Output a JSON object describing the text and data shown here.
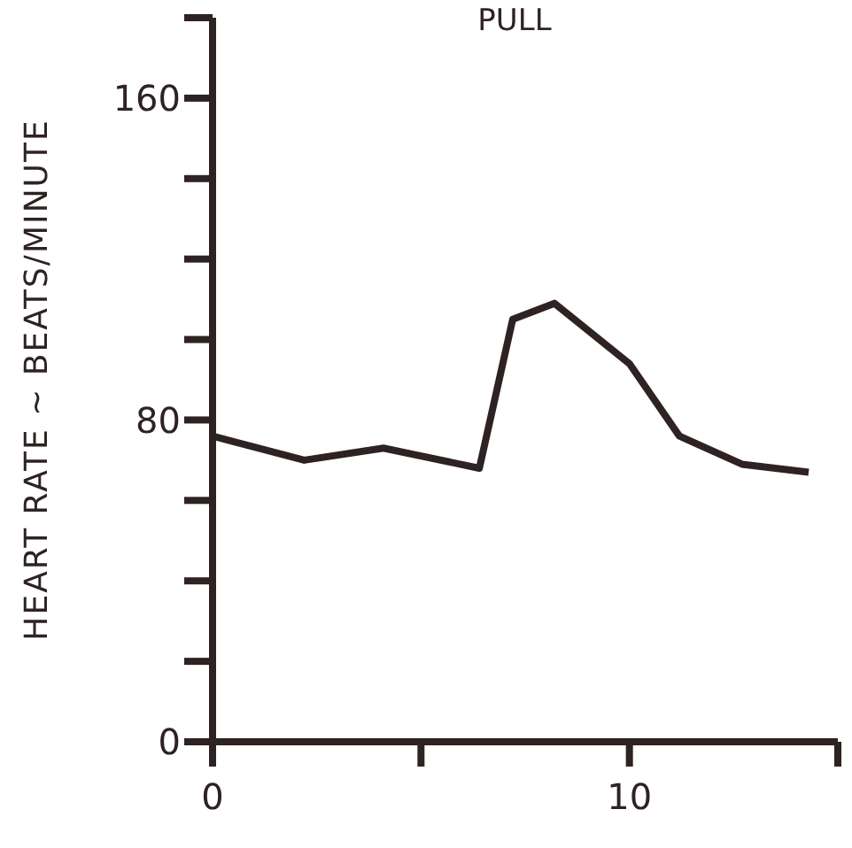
{
  "chart_data": {
    "type": "line",
    "title": "PULL",
    "ylabel": "HEART RATE ~ BEATS/MINUTE",
    "x": [
      0,
      2.2,
      4.1,
      6.4,
      7.2,
      8.2,
      10,
      11.2,
      12.7,
      14.3
    ],
    "series": [
      {
        "color": "#2e2222",
        "values": [
          76,
          70,
          73,
          68,
          105,
          109,
          94,
          76,
          69,
          67
        ]
      }
    ],
    "xlim": [
      0,
      15
    ],
    "xticks": [
      0,
      {
        "value": 5,
        "label": null
      },
      10,
      {
        "value": 15,
        "label": null
      }
    ],
    "ylim": [
      0,
      180
    ],
    "yticks": [
      0,
      {
        "value": 20,
        "label": null
      },
      {
        "value": 40,
        "label": null
      },
      {
        "value": 60,
        "label": null
      },
      80,
      {
        "value": 100,
        "label": null
      },
      {
        "value": 120,
        "label": null
      },
      {
        "value": 140,
        "label": null
      },
      160,
      {
        "value": 180,
        "label": null
      }
    ],
    "grid": false,
    "marker": "none",
    "line_style": "solid"
  }
}
